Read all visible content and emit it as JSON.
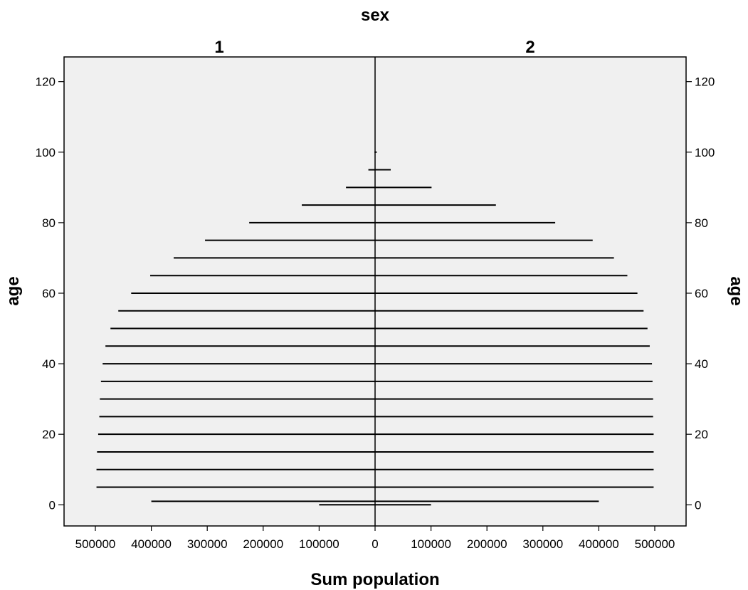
{
  "chart_data": {
    "type": "bar",
    "orientation": "horizontal",
    "subtype": "population-pyramid",
    "title": "sex",
    "panels": [
      "1",
      "2"
    ],
    "xlabel": "Sum population",
    "ylabel": "age",
    "x_ticks": [
      "500000",
      "400000",
      "300000",
      "200000",
      "100000",
      "0",
      "100000",
      "200000",
      "300000",
      "400000",
      "500000"
    ],
    "y_ticks": [
      "0",
      "20",
      "40",
      "60",
      "80",
      "100",
      "120"
    ],
    "xlim": [
      0,
      500000
    ],
    "ylim": [
      -6,
      127
    ],
    "grid": false,
    "background_color": "#f0f0f0",
    "line_color": "#000000",
    "series": [
      {
        "name": "1",
        "ages": [
          0,
          1,
          5,
          10,
          15,
          20,
          25,
          30,
          35,
          40,
          45,
          50,
          55,
          60,
          65,
          70,
          75,
          80,
          85,
          90,
          95,
          100
        ],
        "values": [
          100000,
          400000,
          498000,
          498000,
          497000,
          495000,
          493000,
          492000,
          490000,
          487000,
          482000,
          473000,
          459000,
          436000,
          402000,
          360000,
          304000,
          225000,
          131000,
          52000,
          12000,
          1000
        ]
      },
      {
        "name": "2",
        "ages": [
          0,
          1,
          5,
          10,
          15,
          20,
          25,
          30,
          35,
          40,
          45,
          50,
          55,
          60,
          65,
          70,
          75,
          80,
          85,
          90,
          95,
          100
        ],
        "values": [
          100000,
          400000,
          498000,
          498000,
          498000,
          498000,
          497000,
          497000,
          496000,
          495000,
          491000,
          487000,
          480000,
          469000,
          451000,
          427000,
          389000,
          322000,
          216000,
          101000,
          28000,
          3000
        ]
      }
    ]
  }
}
